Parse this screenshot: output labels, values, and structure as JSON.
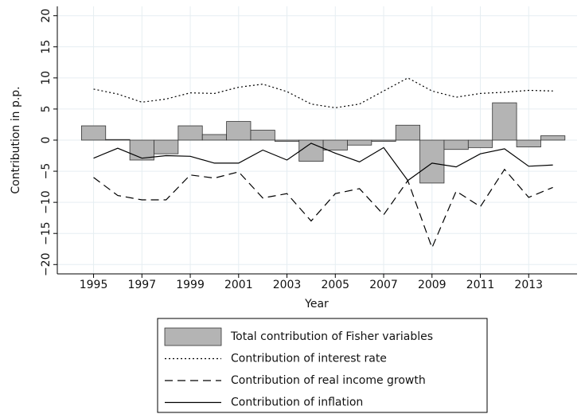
{
  "chart_data": {
    "type": "combo",
    "y_label": "Contribution in p.p.",
    "x_label": "Year",
    "x": [
      1995,
      1996,
      1997,
      1998,
      1999,
      2000,
      2001,
      2002,
      2003,
      2004,
      2005,
      2006,
      2007,
      2008,
      2009,
      2010,
      2011,
      2012,
      2013,
      2014
    ],
    "series": [
      {
        "name": "Total contribution of Fisher variables",
        "type": "bar",
        "color": "#b4b4b4",
        "values": [
          2.3,
          0.1,
          -3.2,
          -2.2,
          2.3,
          0.9,
          3.0,
          1.6,
          -0.2,
          -3.4,
          -1.6,
          -0.8,
          -0.2,
          2.4,
          -6.9,
          -1.5,
          -1.2,
          6.0,
          -1.1,
          0.7
        ]
      },
      {
        "name": "Contribution of interest rate",
        "type": "line",
        "dash": "dotted",
        "color": "#000000",
        "values": [
          8.2,
          7.4,
          6.1,
          6.6,
          7.6,
          7.5,
          8.5,
          9.0,
          7.8,
          5.8,
          5.2,
          5.8,
          7.9,
          10.0,
          7.9,
          6.9,
          7.5,
          7.7,
          8.0,
          7.9
        ]
      },
      {
        "name": "Contribution of real income growth",
        "type": "line",
        "dash": "dashed",
        "color": "#000000",
        "values": [
          -6.0,
          -8.9,
          -9.6,
          -9.6,
          -5.6,
          -6.1,
          -5.1,
          -9.3,
          -8.6,
          -13.0,
          -8.6,
          -7.8,
          -12.0,
          -6.5,
          -17.3,
          -8.2,
          -10.7,
          -4.7,
          -9.2,
          -7.6
        ]
      },
      {
        "name": "Contribution of inflation",
        "type": "line",
        "dash": "solid",
        "color": "#000000",
        "values": [
          -2.9,
          -1.3,
          -2.9,
          -2.5,
          -2.6,
          -3.7,
          -3.7,
          -1.6,
          -3.2,
          -0.5,
          -2.1,
          -3.5,
          -1.2,
          -6.5,
          -3.7,
          -4.3,
          -2.2,
          -1.4,
          -4.2,
          -4.0
        ]
      }
    ],
    "xlim": [
      1993.5,
      2015
    ],
    "xticks": [
      1995,
      1997,
      1999,
      2001,
      2003,
      2005,
      2007,
      2009,
      2011,
      2013
    ],
    "ylim": [
      -21.5,
      21.5
    ],
    "yticks": [
      {
        "value": -20,
        "label": "−20"
      },
      {
        "value": -15,
        "label": "−15"
      },
      {
        "value": -10,
        "label": "−10"
      },
      {
        "value": -5,
        "label": "−5"
      },
      0,
      5,
      10,
      15,
      20
    ],
    "grid": true,
    "legend": "bottom"
  }
}
